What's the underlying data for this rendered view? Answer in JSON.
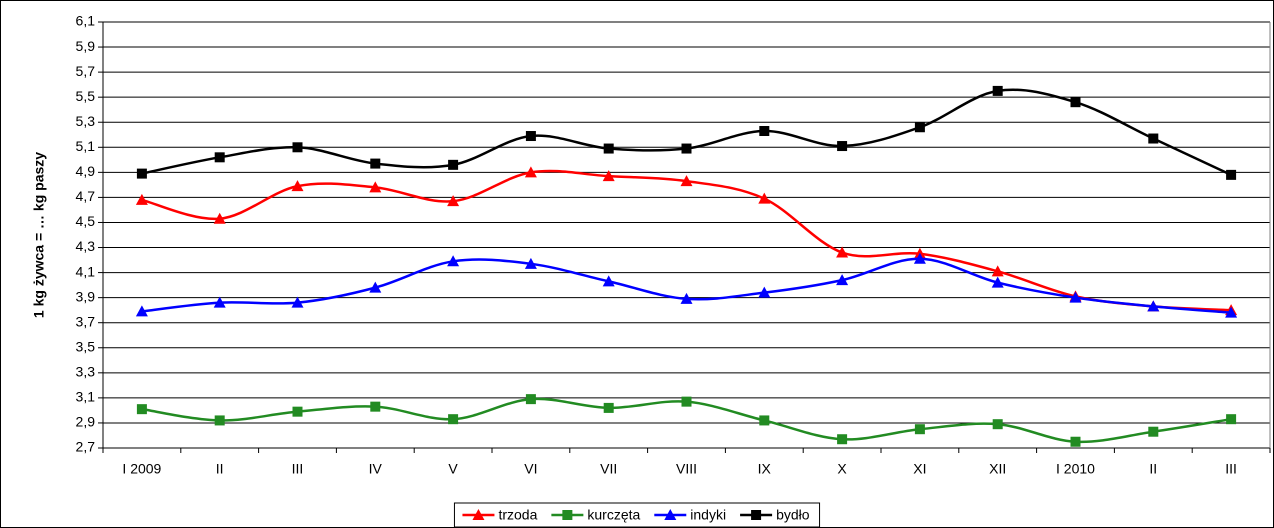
{
  "chart_data": {
    "type": "line",
    "y_label": "1 kg żywca = … kg paszy",
    "categories": [
      "I 2009",
      "II",
      "III",
      "IV",
      "V",
      "VI",
      "VII",
      "VIII",
      "IX",
      "X",
      "XI",
      "XII",
      "I 2010",
      "II",
      "III"
    ],
    "series": [
      {
        "name": "trzoda",
        "color": "#ff0000",
        "marker": "triangle",
        "values": [
          4.68,
          4.53,
          4.79,
          4.78,
          4.67,
          4.9,
          4.87,
          4.83,
          4.69,
          4.26,
          4.25,
          4.11,
          3.91,
          3.83,
          3.8
        ]
      },
      {
        "name": "kurczęta",
        "color": "#228b22",
        "marker": "square",
        "values": [
          3.01,
          2.92,
          2.99,
          3.03,
          2.93,
          3.09,
          3.02,
          3.07,
          2.92,
          2.77,
          2.85,
          2.89,
          2.75,
          2.83,
          2.93
        ]
      },
      {
        "name": "indyki",
        "color": "#0000ff",
        "marker": "triangle",
        "values": [
          3.79,
          3.86,
          3.86,
          3.98,
          4.19,
          4.17,
          4.03,
          3.89,
          3.94,
          4.04,
          4.21,
          4.02,
          3.9,
          3.83,
          3.78
        ]
      },
      {
        "name": "bydło",
        "color": "#000000",
        "marker": "square",
        "values": [
          4.89,
          5.02,
          5.1,
          4.97,
          4.96,
          5.19,
          5.09,
          5.09,
          5.23,
          5.11,
          5.26,
          5.55,
          5.46,
          5.17,
          4.88
        ]
      }
    ],
    "ylim": [
      2.7,
      6.1
    ],
    "yticks": [
      {
        "value": 2.7,
        "label": "2,7"
      },
      {
        "value": 2.9,
        "label": "2,9"
      },
      {
        "value": 3.1,
        "label": "3,1"
      },
      {
        "value": 3.3,
        "label": "3,3"
      },
      {
        "value": 3.5,
        "label": "3,5"
      },
      {
        "value": 3.7,
        "label": "3,7"
      },
      {
        "value": 3.9,
        "label": "3,9"
      },
      {
        "value": 4.1,
        "label": "4,1"
      },
      {
        "value": 4.3,
        "label": "4,3"
      },
      {
        "value": 4.5,
        "label": "4,5"
      },
      {
        "value": 4.7,
        "label": "4,7"
      },
      {
        "value": 4.9,
        "label": "4,9"
      },
      {
        "value": 5.1,
        "label": "5,1"
      },
      {
        "value": 5.3,
        "label": "5,3"
      },
      {
        "value": 5.5,
        "label": "5,5"
      },
      {
        "value": 5.7,
        "label": "5,7"
      },
      {
        "value": 5.9,
        "label": "5,9"
      },
      {
        "value": 6.1,
        "label": "6,1"
      }
    ],
    "grid": true,
    "smooth": true,
    "legend": "bottom"
  }
}
